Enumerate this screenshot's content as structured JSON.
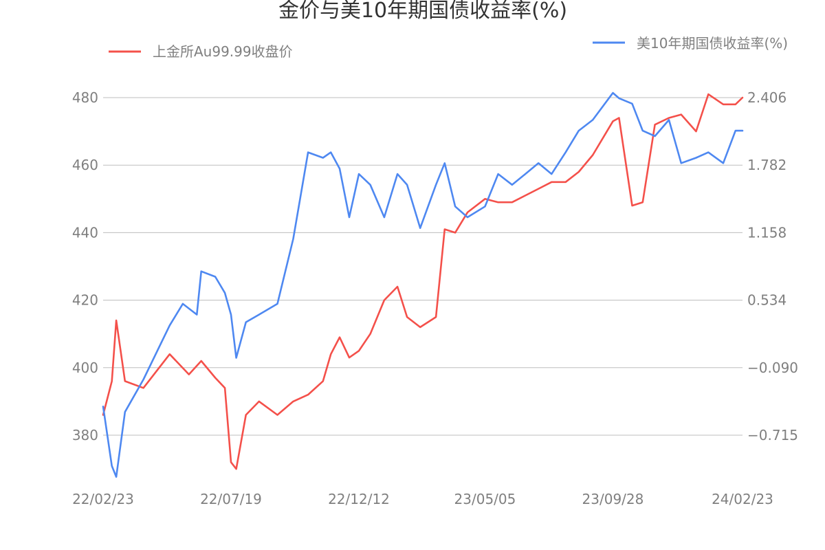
{
  "chart_data": {
    "type": "line",
    "title": "金价与美10年期国债收益率(%)",
    "x_ticks": [
      "22/02/23",
      "22/07/19",
      "22/12/12",
      "23/05/05",
      "23/09/28",
      "24/02/23"
    ],
    "y_left": {
      "ticks": [
        "380",
        "400",
        "420",
        "440",
        "460",
        "480"
      ],
      "range": [
        365,
        488
      ]
    },
    "y_right": {
      "ticks": [
        "−0.715",
        "−0.090",
        "0.534",
        "1.158",
        "1.782",
        "2.406"
      ]
    },
    "legend": [
      {
        "name": "上金所Au99.99收盘价",
        "color": "#f4504a",
        "placement": "top-left"
      },
      {
        "name": "美10年期国债收益率(%)",
        "color": "#4e88f1",
        "placement": "top-right"
      }
    ],
    "series": [
      {
        "name": "上金所Au99.99收盘价",
        "axis": "left",
        "color": "#f4504a",
        "x": [
          "22/02/23",
          "22/03/05",
          "22/03/10",
          "22/03/20",
          "22/04/10",
          "22/05/10",
          "22/06/01",
          "22/06/15",
          "22/07/01",
          "22/07/12",
          "22/07/19",
          "22/07/25",
          "22/08/05",
          "22/08/20",
          "22/09/10",
          "22/09/28",
          "22/10/15",
          "22/11/01",
          "22/11/10",
          "22/11/20",
          "22/12/01",
          "22/12/12",
          "22/12/25",
          "23/01/10",
          "23/01/25",
          "23/02/05",
          "23/02/20",
          "23/03/10",
          "23/03/20",
          "23/04/01",
          "23/04/15",
          "23/05/05",
          "23/05/20",
          "23/06/05",
          "23/06/20",
          "23/07/05",
          "23/07/20",
          "23/08/05",
          "23/08/20",
          "23/09/05",
          "23/09/28",
          "23/10/05",
          "23/10/20",
          "23/11/01",
          "23/11/15",
          "23/12/01",
          "23/12/15",
          "24/01/01",
          "24/01/15",
          "24/02/01",
          "24/02/15",
          "24/02/23"
        ],
        "values": [
          386,
          396,
          414,
          396,
          394,
          404,
          398,
          402,
          397,
          394,
          372,
          370,
          386,
          390,
          386,
          390,
          392,
          396,
          404,
          409,
          403,
          405,
          410,
          420,
          424,
          415,
          412,
          415,
          441,
          440,
          446,
          450,
          449,
          449,
          451,
          453,
          455,
          455,
          458,
          463,
          473,
          474,
          448,
          449,
          472,
          474,
          475,
          470,
          481,
          478,
          478,
          480
        ]
      },
      {
        "name": "美10年期国债收益率(%)",
        "axis": "right",
        "color": "#4e88f1",
        "x": [
          "22/02/23",
          "22/03/05",
          "22/03/10",
          "22/03/20",
          "22/04/10",
          "22/05/10",
          "22/05/25",
          "22/06/10",
          "22/06/15",
          "22/07/01",
          "22/07/12",
          "22/07/19",
          "22/07/25",
          "22/08/05",
          "22/08/20",
          "22/09/10",
          "22/09/28",
          "22/10/15",
          "22/11/01",
          "22/11/10",
          "22/11/20",
          "22/12/01",
          "22/12/12",
          "22/12/25",
          "23/01/10",
          "23/01/25",
          "23/02/05",
          "23/02/20",
          "23/03/10",
          "23/03/20",
          "23/04/01",
          "23/04/15",
          "23/05/05",
          "23/05/20",
          "23/06/05",
          "23/06/20",
          "23/07/05",
          "23/07/20",
          "23/08/05",
          "23/08/20",
          "23/09/05",
          "23/09/28",
          "23/10/05",
          "23/10/20",
          "23/11/01",
          "23/11/15",
          "23/12/01",
          "23/12/15",
          "24/01/01",
          "24/01/15",
          "24/02/01",
          "24/02/15",
          "24/02/23"
        ],
        "values": [
          -0.45,
          -1.0,
          -1.1,
          -0.5,
          -0.2,
          0.3,
          0.5,
          0.4,
          0.8,
          0.75,
          0.6,
          0.4,
          0.0,
          0.33,
          0.4,
          0.5,
          1.1,
          1.9,
          1.85,
          1.9,
          1.75,
          1.3,
          1.7,
          1.6,
          1.3,
          1.7,
          1.6,
          1.2,
          1.6,
          1.8,
          1.4,
          1.3,
          1.4,
          1.7,
          1.6,
          1.7,
          1.8,
          1.7,
          1.9,
          2.1,
          2.2,
          2.45,
          2.4,
          2.35,
          2.1,
          2.05,
          2.2,
          1.8,
          1.85,
          1.9,
          1.8,
          2.1,
          2.1
        ]
      }
    ]
  }
}
